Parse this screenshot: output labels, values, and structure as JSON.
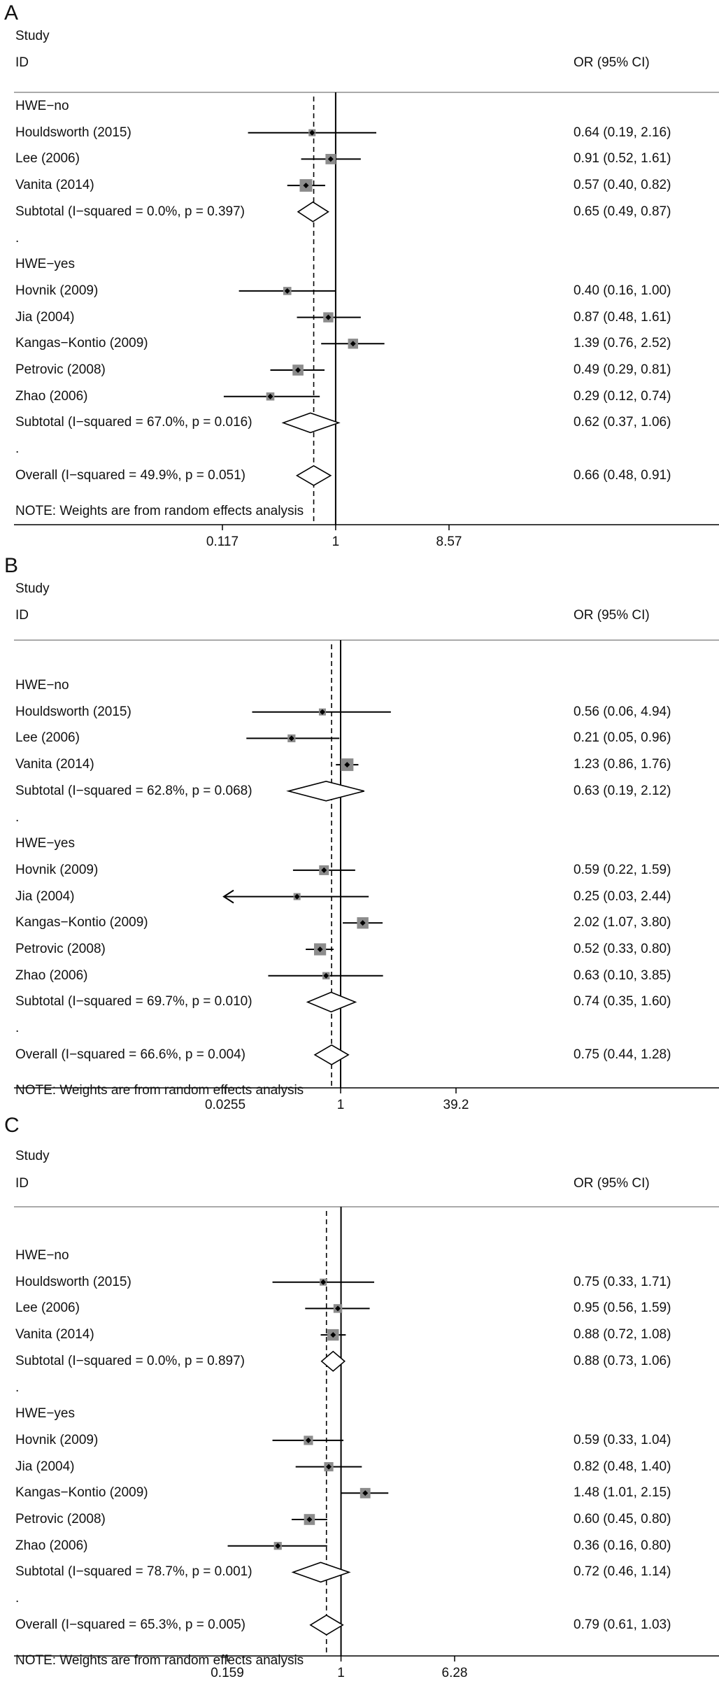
{
  "chart_data": [
    {
      "type": "forest",
      "panel_label": "A",
      "header_col1_line1": "Study",
      "header_col1_line2": "ID",
      "header_col2": "OR (95% CI)",
      "note": "NOTE: Weights are from random effects analysis",
      "x_scale": "log",
      "xlim": [
        0.117,
        8.57
      ],
      "ticks": [
        "0.117",
        "1",
        "8.57"
      ],
      "overall_estimate_line": 0.66,
      "rows": [
        {
          "kind": "group",
          "label": "HWE−no"
        },
        {
          "kind": "study",
          "label": "Houldsworth (2015)",
          "or": 0.64,
          "lo": 0.19,
          "hi": 2.16,
          "ci_text": "0.64 (0.19, 2.16)",
          "weight": 1.0
        },
        {
          "kind": "study",
          "label": "Lee (2006)",
          "or": 0.91,
          "lo": 0.52,
          "hi": 1.61,
          "ci_text": "0.91 (0.52, 1.61)",
          "weight": 2.2
        },
        {
          "kind": "study",
          "label": "Vanita (2014)",
          "or": 0.57,
          "lo": 0.4,
          "hi": 0.82,
          "ci_text": "0.57 (0.40, 0.82)",
          "weight": 3.0
        },
        {
          "kind": "subtotal",
          "label": "Subtotal  (I−squared = 0.0%, p = 0.397)",
          "or": 0.65,
          "lo": 0.49,
          "hi": 0.87,
          "ci_text": "0.65 (0.49, 0.87)"
        },
        {
          "kind": "dot",
          "label": "."
        },
        {
          "kind": "group",
          "label": "HWE−yes"
        },
        {
          "kind": "study",
          "label": "Hovnik (2009)",
          "or": 0.4,
          "lo": 0.16,
          "hi": 1.0,
          "ci_text": "0.40 (0.16, 1.00)",
          "weight": 1.4
        },
        {
          "kind": "study",
          "label": "Jia (2004)",
          "or": 0.87,
          "lo": 0.48,
          "hi": 1.61,
          "ci_text": "0.87 (0.48, 1.61)",
          "weight": 2.1
        },
        {
          "kind": "study",
          "label": "Kangas−Kontio (2009)",
          "or": 1.39,
          "lo": 0.76,
          "hi": 2.52,
          "ci_text": "1.39 (0.76, 2.52)",
          "weight": 2.1
        },
        {
          "kind": "study",
          "label": "Petrovic (2008)",
          "or": 0.49,
          "lo": 0.29,
          "hi": 0.81,
          "ci_text": "0.49 (0.29, 0.81)",
          "weight": 2.4
        },
        {
          "kind": "study",
          "label": "Zhao (2006)",
          "or": 0.29,
          "lo": 0.12,
          "hi": 0.74,
          "ci_text": "0.29 (0.12, 0.74)",
          "weight": 1.4
        },
        {
          "kind": "subtotal",
          "label": "Subtotal  (I−squared = 67.0%, p = 0.016)",
          "or": 0.62,
          "lo": 0.37,
          "hi": 1.06,
          "ci_text": "0.62 (0.37, 1.06)"
        },
        {
          "kind": "dot",
          "label": "."
        },
        {
          "kind": "overall",
          "label": "Overall  (I−squared = 49.9%, p = 0.051)",
          "or": 0.66,
          "lo": 0.48,
          "hi": 0.91,
          "ci_text": "0.66 (0.48, 0.91)"
        }
      ]
    },
    {
      "type": "forest",
      "panel_label": "B",
      "header_col1_line1": "Study",
      "header_col1_line2": "ID",
      "header_col2": "OR (95% CI)",
      "note": "NOTE: Weights are from random effects analysis",
      "x_scale": "log",
      "xlim": [
        0.0255,
        39.2
      ],
      "ticks": [
        "0.0255",
        "1",
        "39.2"
      ],
      "overall_estimate_line": 0.75,
      "rows": [
        {
          "kind": "group",
          "label": "HWE−no"
        },
        {
          "kind": "study",
          "label": "Houldsworth (2015)",
          "or": 0.56,
          "lo": 0.06,
          "hi": 4.94,
          "ci_text": "0.56 (0.06, 4.94)",
          "weight": 1.0
        },
        {
          "kind": "study",
          "label": "Lee (2006)",
          "or": 0.21,
          "lo": 0.05,
          "hi": 0.96,
          "ci_text": "0.21 (0.05, 0.96)",
          "weight": 1.3
        },
        {
          "kind": "study",
          "label": "Vanita (2014)",
          "or": 1.23,
          "lo": 0.86,
          "hi": 1.76,
          "ci_text": "1.23 (0.86, 1.76)",
          "weight": 3.0
        },
        {
          "kind": "subtotal",
          "label": "Subtotal  (I−squared = 62.8%, p = 0.068)",
          "or": 0.63,
          "lo": 0.19,
          "hi": 2.12,
          "ci_text": "0.63 (0.19, 2.12)"
        },
        {
          "kind": "dot",
          "label": "."
        },
        {
          "kind": "group",
          "label": "HWE−yes"
        },
        {
          "kind": "study",
          "label": "Hovnik (2009)",
          "or": 0.59,
          "lo": 0.22,
          "hi": 1.59,
          "ci_text": "0.59 (0.22, 1.59)",
          "weight": 2.0
        },
        {
          "kind": "study",
          "label": "Jia (2004)",
          "or": 0.25,
          "lo": 0.03,
          "hi": 2.44,
          "ci_text": "0.25 (0.03, 2.44)",
          "weight": 1.0,
          "arrow_left": true
        },
        {
          "kind": "study",
          "label": "Kangas−Kontio (2009)",
          "or": 2.02,
          "lo": 1.07,
          "hi": 3.8,
          "ci_text": "2.02 (1.07, 3.80)",
          "weight": 2.6
        },
        {
          "kind": "study",
          "label": "Petrovic (2008)",
          "or": 0.52,
          "lo": 0.33,
          "hi": 0.8,
          "ci_text": "0.52 (0.33, 0.80)",
          "weight": 2.8
        },
        {
          "kind": "study",
          "label": "Zhao (2006)",
          "or": 0.63,
          "lo": 0.1,
          "hi": 3.85,
          "ci_text": "0.63 (0.10, 3.85)",
          "weight": 1.1
        },
        {
          "kind": "subtotal",
          "label": "Subtotal  (I−squared = 69.7%, p = 0.010)",
          "or": 0.74,
          "lo": 0.35,
          "hi": 1.6,
          "ci_text": "0.74 (0.35, 1.60)"
        },
        {
          "kind": "dot",
          "label": "."
        },
        {
          "kind": "overall",
          "label": "Overall  (I−squared = 66.6%, p = 0.004)",
          "or": 0.75,
          "lo": 0.44,
          "hi": 1.28,
          "ci_text": "0.75 (0.44, 1.28)"
        }
      ]
    },
    {
      "type": "forest",
      "panel_label": "C",
      "header_col1_line1": "Study",
      "header_col1_line2": "ID",
      "header_col2": "OR (95% CI)",
      "note": "NOTE: Weights are from random effects analysis",
      "x_scale": "log",
      "xlim": [
        0.159,
        6.28
      ],
      "ticks": [
        "0.159",
        "1",
        "6.28"
      ],
      "overall_estimate_line": 0.79,
      "rows": [
        {
          "kind": "group",
          "label": "HWE−no"
        },
        {
          "kind": "study",
          "label": "Houldsworth (2015)",
          "or": 0.75,
          "lo": 0.33,
          "hi": 1.71,
          "ci_text": "0.75 (0.33, 1.71)",
          "weight": 1.0
        },
        {
          "kind": "study",
          "label": "Lee (2006)",
          "or": 0.95,
          "lo": 0.56,
          "hi": 1.59,
          "ci_text": "0.95 (0.56, 1.59)",
          "weight": 1.6
        },
        {
          "kind": "study",
          "label": "Vanita (2014)",
          "or": 0.88,
          "lo": 0.72,
          "hi": 1.08,
          "ci_text": "0.88 (0.72, 1.08)",
          "weight": 2.6
        },
        {
          "kind": "subtotal",
          "label": "Subtotal  (I−squared = 0.0%, p = 0.897)",
          "or": 0.88,
          "lo": 0.73,
          "hi": 1.06,
          "ci_text": "0.88 (0.73, 1.06)"
        },
        {
          "kind": "dot",
          "label": "."
        },
        {
          "kind": "group",
          "label": "HWE−yes"
        },
        {
          "kind": "study",
          "label": "Hovnik (2009)",
          "or": 0.59,
          "lo": 0.33,
          "hi": 1.04,
          "ci_text": "0.59 (0.33, 1.04)",
          "weight": 1.8
        },
        {
          "kind": "study",
          "label": "Jia (2004)",
          "or": 0.82,
          "lo": 0.48,
          "hi": 1.4,
          "ci_text": "0.82 (0.48, 1.40)",
          "weight": 1.8
        },
        {
          "kind": "study",
          "label": "Kangas−Kontio (2009)",
          "or": 1.48,
          "lo": 1.01,
          "hi": 2.15,
          "ci_text": "1.48 (1.01, 2.15)",
          "weight": 2.2
        },
        {
          "kind": "study",
          "label": "Petrovic (2008)",
          "or": 0.6,
          "lo": 0.45,
          "hi": 0.8,
          "ci_text": "0.60 (0.45, 0.80)",
          "weight": 2.4
        },
        {
          "kind": "study",
          "label": "Zhao (2006)",
          "or": 0.36,
          "lo": 0.16,
          "hi": 0.8,
          "ci_text": "0.36 (0.16, 0.80)",
          "weight": 1.3
        },
        {
          "kind": "subtotal",
          "label": "Subtotal  (I−squared = 78.7%, p = 0.001)",
          "or": 0.72,
          "lo": 0.46,
          "hi": 1.14,
          "ci_text": "0.72 (0.46, 1.14)"
        },
        {
          "kind": "dot",
          "label": "."
        },
        {
          "kind": "overall",
          "label": "Overall  (I−squared = 65.3%, p = 0.005)",
          "or": 0.79,
          "lo": 0.61,
          "hi": 1.03,
          "ci_text": "0.79 (0.61, 1.03)"
        }
      ]
    }
  ]
}
